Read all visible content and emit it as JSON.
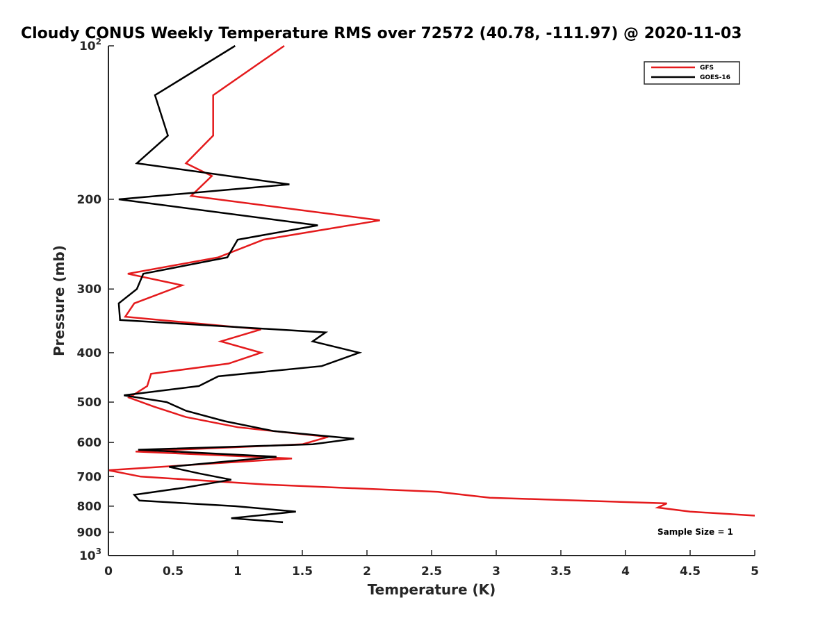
{
  "chart_data": {
    "type": "line",
    "title": "Cloudy CONUS Weekly Temperature RMS over 72572 (40.78, -111.97) @ 2020-11-03",
    "xlabel": "Temperature (K)",
    "ylabel": "Pressure (mb)",
    "xlim": [
      0,
      5
    ],
    "ylim": [
      100,
      1000
    ],
    "y_scale": "log",
    "y_reversed": true,
    "grid": false,
    "legend_position": "top-right",
    "x_ticks": [
      "0",
      "0.5",
      "1",
      "1.5",
      "2",
      "2.5",
      "3",
      "3.5",
      "4",
      "4.5",
      "5"
    ],
    "x_tick_values": [
      0,
      0.5,
      1,
      1.5,
      2,
      2.5,
      3,
      3.5,
      4,
      4.5,
      5
    ],
    "y_ticks": [
      {
        "value": 100,
        "base": "10",
        "exp": "2"
      },
      {
        "value": 200,
        "base": "200",
        "exp": ""
      },
      {
        "value": 300,
        "base": "300",
        "exp": ""
      },
      {
        "value": 400,
        "base": "400",
        "exp": ""
      },
      {
        "value": 500,
        "base": "500",
        "exp": ""
      },
      {
        "value": 600,
        "base": "600",
        "exp": ""
      },
      {
        "value": 700,
        "base": "700",
        "exp": ""
      },
      {
        "value": 800,
        "base": "800",
        "exp": ""
      },
      {
        "value": 900,
        "base": "900",
        "exp": ""
      },
      {
        "value": 1000,
        "base": "10",
        "exp": "3"
      }
    ],
    "annotation": "Sample Size = 1",
    "series": [
      {
        "name": "GFS",
        "color": "#e41a1c",
        "points": [
          [
            1.36,
            100
          ],
          [
            0.81,
            125
          ],
          [
            0.81,
            150
          ],
          [
            0.6,
            170
          ],
          [
            0.8,
            180
          ],
          [
            0.64,
            197
          ],
          [
            2.1,
            220
          ],
          [
            1.2,
            240
          ],
          [
            0.85,
            260
          ],
          [
            0.15,
            280
          ],
          [
            0.57,
            295
          ],
          [
            0.2,
            320
          ],
          [
            0.13,
            340
          ],
          [
            1.18,
            360
          ],
          [
            0.87,
            380
          ],
          [
            1.18,
            400
          ],
          [
            0.93,
            420
          ],
          [
            0.33,
            440
          ],
          [
            0.3,
            465
          ],
          [
            0.16,
            490
          ],
          [
            0.35,
            510
          ],
          [
            0.6,
            535
          ],
          [
            1.0,
            560
          ],
          [
            1.7,
            585
          ],
          [
            1.5,
            605
          ],
          [
            0.21,
            625
          ],
          [
            1.42,
            645
          ],
          [
            0.8,
            660
          ],
          [
            0.0,
            680
          ],
          [
            0.25,
            700
          ],
          [
            1.2,
            725
          ],
          [
            2.55,
            750
          ],
          [
            2.95,
            770
          ],
          [
            4.32,
            790
          ],
          [
            4.25,
            805
          ],
          [
            4.5,
            820
          ],
          [
            5.0,
            835
          ]
        ]
      },
      {
        "name": "GOES-16",
        "color": "#000000",
        "points": [
          [
            0.98,
            100
          ],
          [
            0.36,
            125
          ],
          [
            0.46,
            150
          ],
          [
            0.22,
            170
          ],
          [
            1.4,
            187
          ],
          [
            0.08,
            200
          ],
          [
            1.62,
            225
          ],
          [
            1.0,
            240
          ],
          [
            0.92,
            260
          ],
          [
            0.27,
            280
          ],
          [
            0.22,
            300
          ],
          [
            0.08,
            320
          ],
          [
            0.09,
            345
          ],
          [
            1.68,
            365
          ],
          [
            1.58,
            380
          ],
          [
            1.94,
            400
          ],
          [
            1.65,
            425
          ],
          [
            0.85,
            445
          ],
          [
            0.7,
            465
          ],
          [
            0.12,
            485
          ],
          [
            0.45,
            500
          ],
          [
            0.6,
            520
          ],
          [
            0.9,
            545
          ],
          [
            1.28,
            570
          ],
          [
            1.9,
            590
          ],
          [
            1.58,
            605
          ],
          [
            0.23,
            620
          ],
          [
            1.3,
            640
          ],
          [
            0.47,
            670
          ],
          [
            0.7,
            690
          ],
          [
            0.95,
            710
          ],
          [
            0.6,
            735
          ],
          [
            0.2,
            760
          ],
          [
            0.24,
            780
          ],
          [
            0.98,
            800
          ],
          [
            1.45,
            820
          ],
          [
            0.95,
            845
          ],
          [
            1.35,
            860
          ]
        ]
      }
    ]
  }
}
